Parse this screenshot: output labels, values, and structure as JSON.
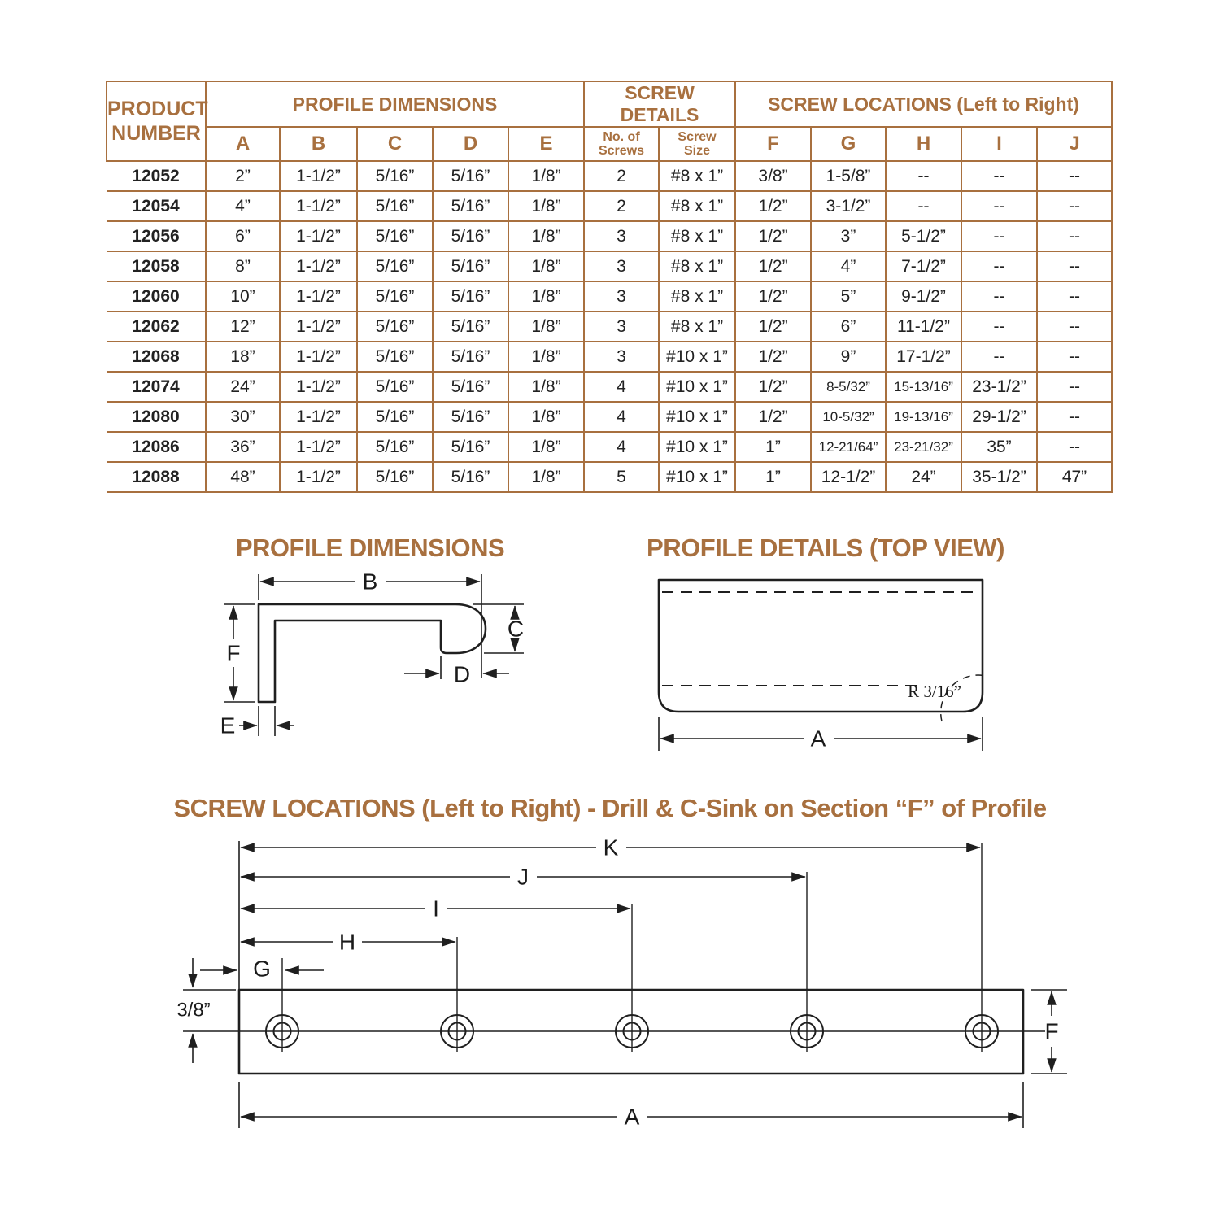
{
  "colors": {
    "brown": "#a8703f",
    "ink": "#222222"
  },
  "table": {
    "product_header": "PRODUCT\nNUMBER",
    "groups": [
      "PROFILE DIMENSIONS",
      "SCREW DETAILS",
      "SCREW LOCATIONS (Left to Right)"
    ],
    "subheaders": [
      "A",
      "B",
      "C",
      "D",
      "E",
      "No. of\nScrews",
      "Screw\nSize",
      "F",
      "G",
      "H",
      "I",
      "J"
    ],
    "rows": [
      {
        "product": "12052",
        "values": [
          "2”",
          "1-1/2”",
          "5/16”",
          "5/16”",
          "1/8”",
          "2",
          "#8 x 1”",
          "3/8”",
          "1-5/8”",
          "--",
          "--",
          "--"
        ]
      },
      {
        "product": "12054",
        "values": [
          "4”",
          "1-1/2”",
          "5/16”",
          "5/16”",
          "1/8”",
          "2",
          "#8 x 1”",
          "1/2”",
          "3-1/2”",
          "--",
          "--",
          "--"
        ]
      },
      {
        "product": "12056",
        "values": [
          "6”",
          "1-1/2”",
          "5/16”",
          "5/16”",
          "1/8”",
          "3",
          "#8 x 1”",
          "1/2”",
          "3”",
          "5-1/2”",
          "--",
          "--"
        ]
      },
      {
        "product": "12058",
        "values": [
          "8”",
          "1-1/2”",
          "5/16”",
          "5/16”",
          "1/8”",
          "3",
          "#8 x 1”",
          "1/2”",
          "4”",
          "7-1/2”",
          "--",
          "--"
        ]
      },
      {
        "product": "12060",
        "values": [
          "10”",
          "1-1/2”",
          "5/16”",
          "5/16”",
          "1/8”",
          "3",
          "#8 x 1”",
          "1/2”",
          "5”",
          "9-1/2”",
          "--",
          "--"
        ]
      },
      {
        "product": "12062",
        "values": [
          "12”",
          "1-1/2”",
          "5/16”",
          "5/16”",
          "1/8”",
          "3",
          "#8 x 1”",
          "1/2”",
          "6”",
          "11-1/2”",
          "--",
          "--"
        ]
      },
      {
        "product": "12068",
        "values": [
          "18”",
          "1-1/2”",
          "5/16”",
          "5/16”",
          "1/8”",
          "3",
          "#10 x 1”",
          "1/2”",
          "9”",
          "17-1/2”",
          "--",
          "--"
        ]
      },
      {
        "product": "12074",
        "values": [
          "24”",
          "1-1/2”",
          "5/16”",
          "5/16”",
          "1/8”",
          "4",
          "#10 x 1”",
          "1/2”",
          "8-5/32”",
          "15-13/16”",
          "23-1/2”",
          "--"
        ]
      },
      {
        "product": "12080",
        "values": [
          "30”",
          "1-1/2”",
          "5/16”",
          "5/16”",
          "1/8”",
          "4",
          "#10 x 1”",
          "1/2”",
          "10-5/32”",
          "19-13/16”",
          "29-1/2”",
          "--"
        ]
      },
      {
        "product": "12086",
        "values": [
          "36”",
          "1-1/2”",
          "5/16”",
          "5/16”",
          "1/8”",
          "4",
          "#10 x 1”",
          "1”",
          "12-21/64”",
          "23-21/32”",
          "35”",
          "--"
        ]
      },
      {
        "product": "12088",
        "values": [
          "48”",
          "1-1/2”",
          "5/16”",
          "5/16”",
          "1/8”",
          "5",
          "#10 x 1”",
          "1”",
          "12-1/2”",
          "24”",
          "35-1/2”",
          "47”"
        ]
      }
    ]
  },
  "diagrams": {
    "profile": {
      "title": "PROFILE DIMENSIONS",
      "labels": {
        "b": "B",
        "c": "C",
        "d": "D",
        "e": "E",
        "f": "F"
      }
    },
    "topview": {
      "title": "PROFILE DETAILS (TOP VIEW)",
      "labels": {
        "a": "A",
        "radius": "R 3/16”"
      }
    },
    "locations": {
      "title": "SCREW LOCATIONS (Left to Right) - Drill & C-Sink on Section “F” of Profile",
      "labels": {
        "g": "G",
        "h": "H",
        "i": "I",
        "j": "J",
        "k": "K",
        "a": "A",
        "f": "F",
        "offset": "3/8”"
      }
    }
  }
}
